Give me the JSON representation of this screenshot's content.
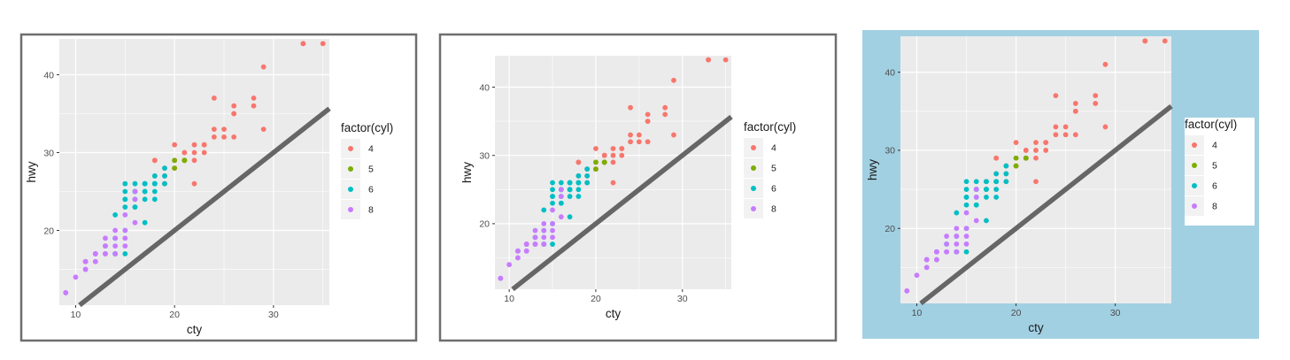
{
  "colors": {
    "panel": "#ebebeb",
    "grid": "#ffffff",
    "line": "#666666",
    "outer_border": "#6e6e6e",
    "alt_background": "#a1d0e2",
    "axis_text": "#4d4d4d",
    "label_text": "#1a1a1a",
    "legend_key": "#f2f2f2",
    "cyl_colors": {
      "4": "#F8766D",
      "5": "#7CAE00",
      "6": "#00BFC4",
      "8": "#C77CFF"
    }
  },
  "chart_data": [
    {
      "type": "scatter",
      "xlabel": "cty",
      "ylabel": "hwy",
      "xlim": [
        8.35,
        35.65
      ],
      "ylim": [
        10.4,
        44.6
      ],
      "xticks": [
        10,
        20,
        30
      ],
      "yticks": [
        20,
        30,
        40
      ],
      "legend": {
        "title": "factor(cyl)",
        "entries": [
          "4",
          "5",
          "6",
          "8"
        ],
        "placement": "right"
      },
      "reference_line": {
        "intercept": 0,
        "slope": 1
      },
      "series": [
        {
          "name": "4",
          "x": [
            18,
            21,
            20,
            21,
            22,
            19,
            22,
            18,
            26,
            24,
            28,
            26,
            29,
            21,
            25,
            23,
            22,
            21,
            26,
            19,
            20,
            22,
            23,
            33,
            35,
            24,
            21,
            25,
            18,
            28,
            23,
            24,
            20,
            26,
            19,
            20,
            29,
            33
          ],
          "y": [
            29,
            29,
            31,
            30,
            26,
            26,
            29,
            29,
            32,
            33,
            36,
            35,
            33,
            30,
            32,
            31,
            31,
            29,
            35,
            27,
            28,
            30,
            30,
            44,
            44,
            37,
            29,
            33,
            27,
            37,
            31,
            32,
            28,
            36,
            28,
            29,
            41,
            44
          ]
        },
        {
          "name": "5",
          "x": [
            21,
            21,
            20,
            20
          ],
          "y": [
            29,
            29,
            28,
            29
          ]
        },
        {
          "name": "6",
          "x": [
            16,
            18,
            17,
            15,
            14,
            17,
            15,
            14,
            15,
            16,
            17,
            18,
            17,
            16,
            15,
            18,
            17,
            16,
            15,
            18,
            16,
            19,
            19,
            18,
            17,
            16,
            15,
            14,
            13,
            14,
            17,
            18,
            15,
            16,
            17,
            19
          ],
          "y": [
            26,
            27,
            25,
            25,
            17,
            26,
            20,
            17,
            24,
            23,
            25,
            26,
            24,
            25,
            23,
            25,
            21,
            24,
            26,
            26,
            25,
            26,
            28,
            24,
            26,
            25,
            24,
            22,
            18,
            19,
            25,
            26,
            17,
            23,
            26,
            27
          ]
        },
        {
          "name": "8",
          "x": [
            9,
            9,
            11,
            11,
            12,
            12,
            13,
            13,
            14,
            14,
            15,
            15,
            16,
            16,
            12,
            11,
            10,
            13,
            14,
            15,
            12,
            11,
            13,
            14,
            15,
            16,
            12,
            11,
            13,
            12
          ],
          "y": [
            12,
            12,
            15,
            16,
            17,
            17,
            19,
            18,
            19,
            20,
            20,
            22,
            24,
            25,
            16,
            15,
            14,
            17,
            17,
            18,
            16,
            16,
            17,
            18,
            19,
            21,
            17,
            16,
            17,
            17
          ]
        }
      ]
    }
  ]
}
